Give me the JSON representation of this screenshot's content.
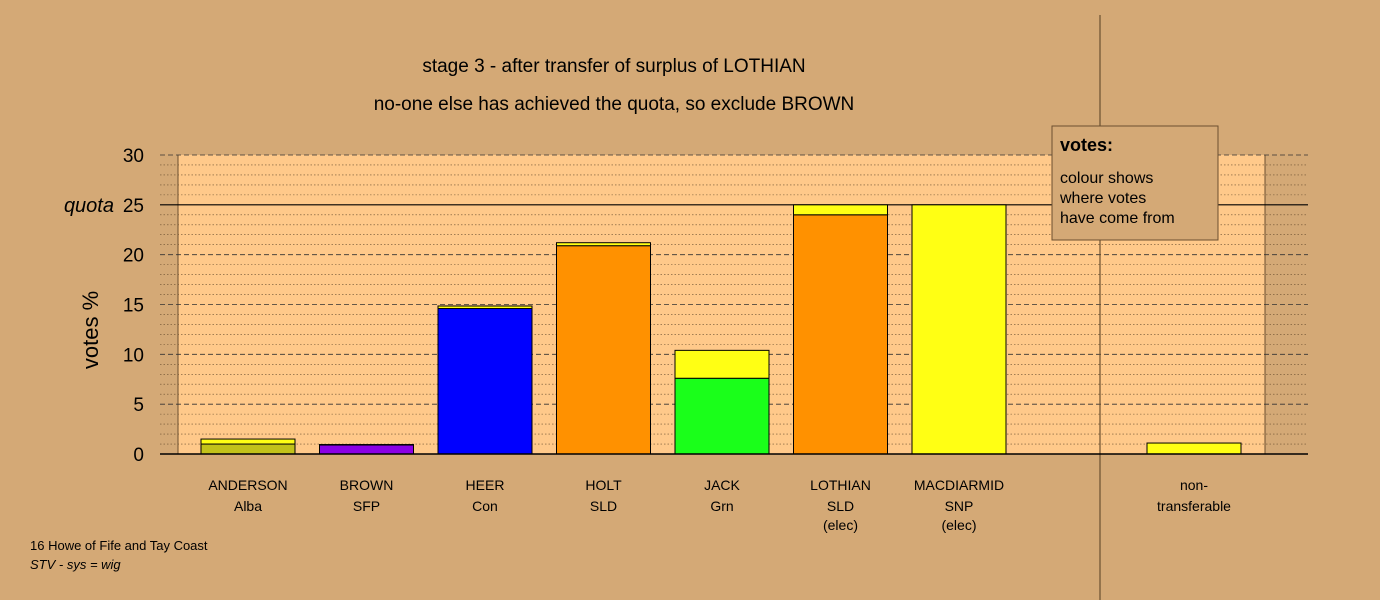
{
  "chart_data": {
    "type": "bar",
    "title": "stage 3 - after transfer of surplus of LOTHIAN",
    "subtitle": "no-one else has achieved the quota, so exclude BROWN",
    "ylabel": "votes %",
    "ylim": [
      0,
      30
    ],
    "yticks": [
      0,
      5,
      10,
      15,
      20,
      25,
      30
    ],
    "quota": 25,
    "quota_label": "quota",
    "grid": true,
    "legend": {
      "title": "votes:",
      "lines": [
        "colour shows",
        "where votes",
        "have come from"
      ],
      "placement": "top-right"
    },
    "colors": {
      "background": "#d4a976",
      "plot_area": "#ffc98a",
      "Alba": "#c2c21a",
      "SFP": "#8b00e6",
      "Con": "#0000ff",
      "SLD": "#ff9100",
      "Grn": "#1aff1a",
      "SNP": "#ffff14"
    },
    "candidates": [
      {
        "name": "ANDERSON",
        "party": "Alba",
        "note": "",
        "segments": [
          {
            "source": "Alba",
            "value": 1.0
          },
          {
            "source": "SNP",
            "value": 0.5
          }
        ]
      },
      {
        "name": "BROWN",
        "party": "SFP",
        "note": "",
        "segments": [
          {
            "source": "SFP",
            "value": 0.9
          },
          {
            "source": "SNP",
            "value": 0.05
          }
        ]
      },
      {
        "name": "HEER",
        "party": "Con",
        "note": "",
        "segments": [
          {
            "source": "Con",
            "value": 14.6
          },
          {
            "source": "SNP",
            "value": 0.25
          }
        ]
      },
      {
        "name": "HOLT",
        "party": "SLD",
        "note": "",
        "segments": [
          {
            "source": "SLD",
            "value": 20.9
          },
          {
            "source": "SNP",
            "value": 0.3
          }
        ]
      },
      {
        "name": "JACK",
        "party": "Grn",
        "note": "",
        "segments": [
          {
            "source": "Grn",
            "value": 7.6
          },
          {
            "source": "SNP",
            "value": 2.8
          }
        ]
      },
      {
        "name": "LOTHIAN",
        "party": "SLD",
        "note": "(elec)",
        "segments": [
          {
            "source": "SLD",
            "value": 24.0
          },
          {
            "source": "SNP",
            "value": 1.0
          }
        ]
      },
      {
        "name": "MACDIARMID",
        "party": "SNP",
        "note": "(elec)",
        "segments": [
          {
            "source": "SNP",
            "value": 25.0
          }
        ]
      }
    ],
    "nontransferable": {
      "label_line1": "non-",
      "label_line2": "transferable",
      "segments": [
        {
          "source": "SNP",
          "value": 1.1
        }
      ]
    }
  },
  "footer": {
    "line1": "16 Howe of Fife and Tay Coast",
    "line2": "STV - sys = wig"
  }
}
